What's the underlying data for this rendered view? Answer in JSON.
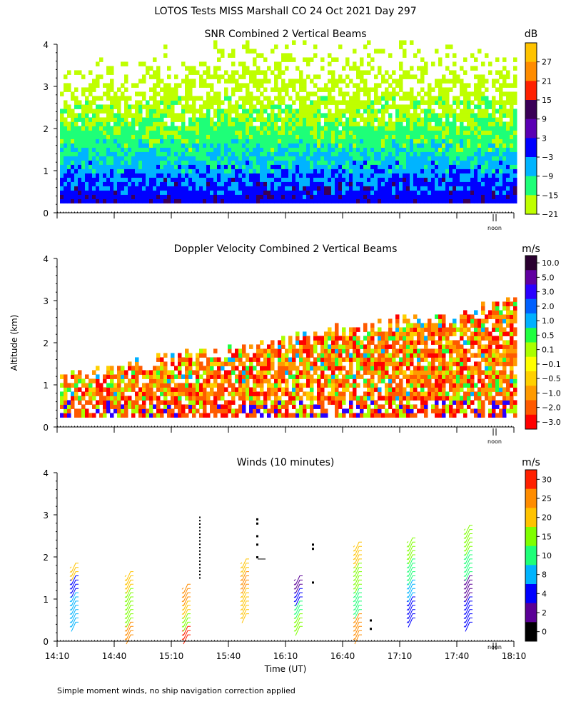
{
  "page": {
    "title": "LOTOS Tests MISS Marshall CO  24 Oct 2021 Day 297",
    "footnote": "Simple moment winds, no ship navigation correction applied",
    "ylabel": "Altitude (km)",
    "xlabel": "Time (UT)",
    "noon_label": "noon"
  },
  "chart_data": [
    {
      "type": "heatmap",
      "title": "SNR Combined 2 Vertical Beams",
      "units": "dB",
      "ylim": [
        0,
        4
      ],
      "yticks": [
        "0",
        "1",
        "2",
        "3",
        "4"
      ],
      "colorbar_labels": [
        "27",
        "21",
        "15",
        "9",
        "3",
        "−3",
        "−9",
        "−15",
        "−21"
      ],
      "colors": [
        "#ffc300",
        "#ff8c00",
        "#ff2000",
        "#3a0057",
        "#5a00b4",
        "#0000ff",
        "#00b4ff",
        "#1eff78",
        "#bfff00"
      ]
    },
    {
      "type": "heatmap",
      "title": "Doppler Velocity Combined 2 Vertical Beams",
      "units": "m/s",
      "ylim": [
        0,
        4
      ],
      "yticks": [
        "0",
        "1",
        "2",
        "3",
        "4"
      ],
      "colorbar_labels": [
        "10.0",
        "5.0",
        "3.0",
        "2.0",
        "1.0",
        "0.5",
        "0.1",
        "−0.1",
        "−0.5",
        "−1.0",
        "−2.0",
        "−3.0"
      ],
      "colors": [
        "#2a0030",
        "#6000a0",
        "#2a00ff",
        "#0060ff",
        "#00b0ff",
        "#20ff40",
        "#aaff00",
        "#ffff00",
        "#ffd000",
        "#ff9a00",
        "#ff5a00",
        "#ff0000"
      ]
    },
    {
      "type": "scatter",
      "title": "Winds (10 minutes)",
      "units": "m/s",
      "ylim": [
        0,
        4
      ],
      "yticks": [
        "0",
        "1",
        "2",
        "3",
        "4"
      ],
      "x": [
        "14:10",
        "14:40",
        "15:10",
        "15:40",
        "16:10",
        "16:40",
        "17:10",
        "17:40",
        "18:10"
      ],
      "colorbar_labels": [
        "30",
        "25",
        "20",
        "15",
        "10",
        "8",
        "4",
        "2",
        "0"
      ],
      "colors": [
        "#ff2000",
        "#ff8c00",
        "#ffc300",
        "#7fff00",
        "#1eff78",
        "#00b4ff",
        "#0000ff",
        "#5a0096",
        "#000000"
      ]
    }
  ]
}
